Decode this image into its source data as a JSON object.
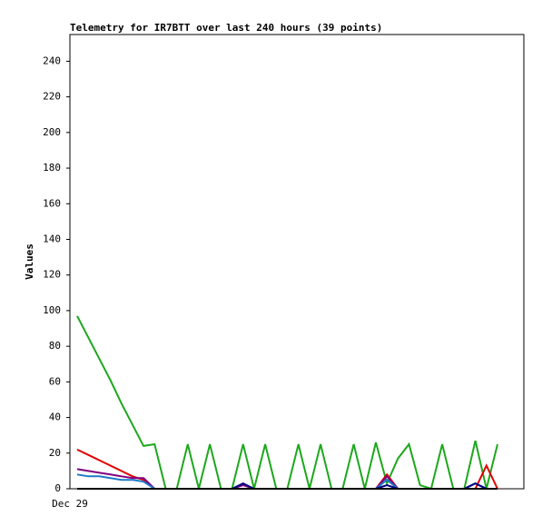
{
  "chart_data": {
    "type": "line",
    "title": "Telemetry for IR7BTT over last 240 hours (39 points)",
    "y_label": "Values",
    "categories": [
      "Dec 29",
      null,
      null,
      null,
      null,
      null,
      null,
      null,
      null,
      null,
      null,
      null,
      null,
      null,
      null,
      null,
      null,
      null,
      null,
      null,
      null,
      null,
      null,
      null,
      null,
      null,
      null,
      null,
      null,
      null,
      null,
      null,
      null,
      null,
      null,
      null,
      null,
      null,
      null
    ],
    "ylim": [
      0,
      255
    ],
    "yticks": [
      0,
      20,
      40,
      60,
      80,
      100,
      120,
      140,
      160,
      180,
      200,
      220,
      240
    ],
    "series": [
      {
        "color": "#1ca81c",
        "values": [
          97,
          85,
          73,
          61,
          48,
          36,
          24,
          25,
          0,
          0,
          25,
          0,
          25,
          0,
          0,
          25,
          0,
          25,
          0,
          0,
          25,
          0,
          25,
          0,
          0,
          25,
          0,
          26,
          3,
          17,
          25,
          2,
          0,
          25,
          0,
          0,
          27,
          0,
          25
        ]
      },
      {
        "color": "#e00000",
        "values": [
          22,
          19,
          16,
          13,
          10,
          7,
          5,
          0,
          0,
          0,
          0,
          0,
          0,
          0,
          0,
          0,
          0,
          0,
          0,
          0,
          0,
          0,
          0,
          0,
          0,
          0,
          0,
          0,
          8,
          0,
          0,
          0,
          0,
          0,
          0,
          0,
          0,
          13,
          0
        ]
      },
      {
        "color": "#800080",
        "values": [
          11,
          10,
          9,
          8,
          7,
          6,
          6,
          0,
          0,
          0,
          0,
          0,
          0,
          0,
          0,
          2,
          0,
          0,
          0,
          0,
          0,
          0,
          0,
          0,
          0,
          0,
          0,
          0,
          7,
          0,
          0,
          0,
          0,
          0,
          0,
          0,
          3,
          0,
          0
        ]
      },
      {
        "color": "#1e78c8",
        "values": [
          8,
          7,
          7,
          6,
          5,
          5,
          4,
          0,
          0,
          0,
          0,
          0,
          0,
          0,
          0,
          0,
          0,
          0,
          0,
          0,
          0,
          0,
          0,
          0,
          0,
          0,
          0,
          0,
          5,
          0,
          0,
          0,
          0,
          0,
          0,
          0,
          3,
          0,
          0
        ]
      },
      {
        "color": "#000080",
        "values": [
          0,
          0,
          0,
          0,
          0,
          0,
          0,
          0,
          0,
          0,
          0,
          0,
          0,
          0,
          0,
          3,
          0,
          0,
          0,
          0,
          0,
          0,
          0,
          0,
          0,
          0,
          0,
          0,
          2,
          0,
          0,
          0,
          0,
          0,
          0,
          0,
          3,
          0,
          0
        ]
      },
      {
        "color": "#000000",
        "values": [
          0,
          0,
          0,
          0,
          0,
          0,
          0,
          0,
          0,
          0,
          0,
          0,
          0,
          0,
          0,
          0,
          0,
          0,
          0,
          0,
          0,
          0,
          0,
          0,
          0,
          0,
          0,
          0,
          0,
          0,
          0,
          0,
          0,
          0,
          0,
          0,
          0,
          0,
          0
        ]
      }
    ]
  }
}
